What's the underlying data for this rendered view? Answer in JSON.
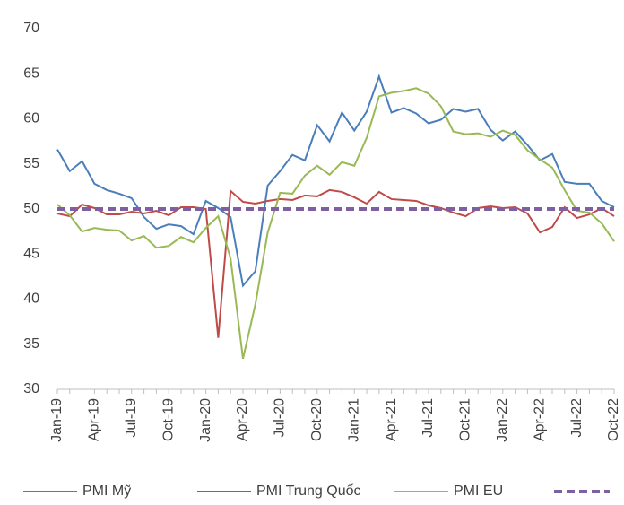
{
  "chart_data": {
    "type": "line",
    "categories": [
      "Jan-19",
      null,
      null,
      "Apr-19",
      null,
      null,
      "Jul-19",
      null,
      null,
      "Oct-19",
      null,
      null,
      "Jan-20",
      null,
      null,
      "Apr-20",
      null,
      null,
      "Jul-20",
      null,
      null,
      "Oct-20",
      null,
      null,
      "Jan-21",
      null,
      null,
      "Apr-21",
      null,
      null,
      "Jul-21",
      null,
      null,
      "Oct-21",
      null,
      null,
      "Jan-22",
      null,
      null,
      "Apr-22",
      null,
      null,
      "Jul-22",
      null,
      null,
      "Oct-22"
    ],
    "series": [
      {
        "name": "PMI Mỹ",
        "color": "#4a7ebb",
        "values": [
          56.6,
          54.2,
          55.3,
          52.8,
          52.1,
          51.7,
          51.2,
          49.1,
          47.8,
          48.3,
          48.1,
          47.2,
          50.9,
          50.1,
          49.1,
          41.5,
          43.1,
          52.6,
          54.2,
          56.0,
          55.4,
          59.3,
          57.5,
          60.7,
          58.7,
          60.8,
          64.7,
          60.7,
          61.2,
          60.6,
          59.5,
          59.9,
          61.1,
          60.8,
          61.1,
          58.8,
          57.6,
          58.6,
          57.1,
          55.4,
          56.1,
          53.0,
          52.8,
          52.8,
          50.9,
          50.2
        ]
      },
      {
        "name": "PMI Trung Quốc",
        "color": "#be4b48",
        "values": [
          49.5,
          49.2,
          50.5,
          50.1,
          49.4,
          49.4,
          49.7,
          49.5,
          49.8,
          49.3,
          50.2,
          50.2,
          50.0,
          35.7,
          52.0,
          50.8,
          50.6,
          50.9,
          51.1,
          51.0,
          51.5,
          51.4,
          52.1,
          51.9,
          51.3,
          50.6,
          51.9,
          51.1,
          51.0,
          50.9,
          50.4,
          50.1,
          49.6,
          49.2,
          50.1,
          50.3,
          50.1,
          50.2,
          49.5,
          47.4,
          48.0,
          50.2,
          49.0,
          49.4,
          50.1,
          49.2
        ]
      },
      {
        "name": "PMI EU",
        "color": "#98b954",
        "values": [
          50.5,
          49.3,
          47.5,
          47.9,
          47.7,
          47.6,
          46.5,
          47.0,
          45.7,
          45.9,
          46.9,
          46.3,
          47.9,
          49.2,
          44.5,
          33.4,
          39.4,
          47.4,
          51.8,
          51.7,
          53.7,
          54.8,
          53.8,
          55.2,
          54.8,
          57.9,
          62.5,
          62.9,
          63.1,
          63.4,
          62.8,
          61.4,
          58.6,
          58.3,
          58.4,
          58.0,
          58.7,
          58.2,
          56.5,
          55.5,
          54.6,
          52.1,
          49.8,
          49.6,
          48.4,
          46.4
        ]
      },
      {
        "color": "#7e5fa0",
        "dashed": true,
        "values": [
          50,
          50,
          50,
          50,
          50,
          50,
          50,
          50,
          50,
          50,
          50,
          50,
          50,
          50,
          50,
          50,
          50,
          50,
          50,
          50,
          50,
          50,
          50,
          50,
          50,
          50,
          50,
          50,
          50,
          50,
          50,
          50,
          50,
          50,
          50,
          50,
          50,
          50,
          50,
          50,
          50,
          50,
          50,
          50,
          50,
          50
        ]
      }
    ],
    "ylim": [
      30,
      70
    ],
    "yticks": [
      30,
      35,
      40,
      45,
      50,
      55,
      60,
      65,
      70
    ],
    "grid": false,
    "legend": "bottom"
  }
}
